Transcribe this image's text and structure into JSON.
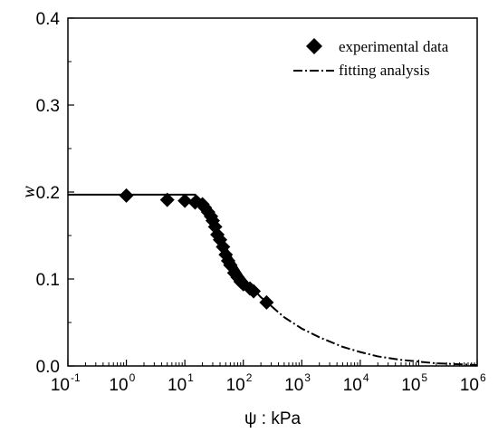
{
  "chart_data": {
    "type": "scatter",
    "xscale": "log",
    "xlim": [
      0.1,
      1000000
    ],
    "ylim": [
      0.0,
      0.4
    ],
    "xticks": [
      {
        "base": "10",
        "exp": "-1",
        "value": 0.1
      },
      {
        "base": "10",
        "exp": "0",
        "value": 1
      },
      {
        "base": "10",
        "exp": "1",
        "value": 10
      },
      {
        "base": "10",
        "exp": "2",
        "value": 100
      },
      {
        "base": "10",
        "exp": "3",
        "value": 1000
      },
      {
        "base": "10",
        "exp": "4",
        "value": 10000
      },
      {
        "base": "10",
        "exp": "5",
        "value": 100000
      },
      {
        "base": "10",
        "exp": "6",
        "value": 1000000
      }
    ],
    "yticks": [
      {
        "label": "0.0",
        "value": 0.0
      },
      {
        "label": "0.1",
        "value": 0.1
      },
      {
        "label": "0.2",
        "value": 0.2
      },
      {
        "label": "0.3",
        "value": 0.3
      },
      {
        "label": "0.4",
        "value": 0.4
      }
    ],
    "xlabel": "ψ : kPa",
    "ylabel": "w",
    "grid": false,
    "legend_position": "top-right",
    "series": [
      {
        "name": "experimental data",
        "kind": "marker",
        "marker": "diamond",
        "color": "#000000",
        "x": [
          1,
          5,
          10,
          15,
          20,
          22,
          25,
          28,
          30,
          33,
          36,
          40,
          45,
          50,
          55,
          60,
          70,
          80,
          90,
          100,
          130,
          150,
          250
        ],
        "y": [
          0.196,
          0.191,
          0.19,
          0.188,
          0.186,
          0.182,
          0.177,
          0.172,
          0.167,
          0.16,
          0.151,
          0.145,
          0.137,
          0.128,
          0.121,
          0.116,
          0.107,
          0.102,
          0.097,
          0.094,
          0.089,
          0.086,
          0.073
        ]
      },
      {
        "name": "fitting analysis",
        "kind": "line",
        "style": "dash-dot",
        "color": "#000000",
        "x": [
          0.1,
          1,
          10,
          15,
          20,
          25,
          30,
          40,
          50,
          60,
          80,
          100,
          150,
          200,
          300,
          500,
          1000,
          2000,
          5000,
          10000,
          20000,
          50000,
          100000,
          200000,
          500000,
          1000000
        ],
        "y": [
          0.197,
          0.197,
          0.197,
          0.197,
          0.189,
          0.178,
          0.168,
          0.151,
          0.137,
          0.127,
          0.112,
          0.102,
          0.088,
          0.079,
          0.069,
          0.056,
          0.043,
          0.033,
          0.022,
          0.016,
          0.011,
          0.007,
          0.005,
          0.003,
          0.002,
          0.001
        ]
      }
    ]
  }
}
